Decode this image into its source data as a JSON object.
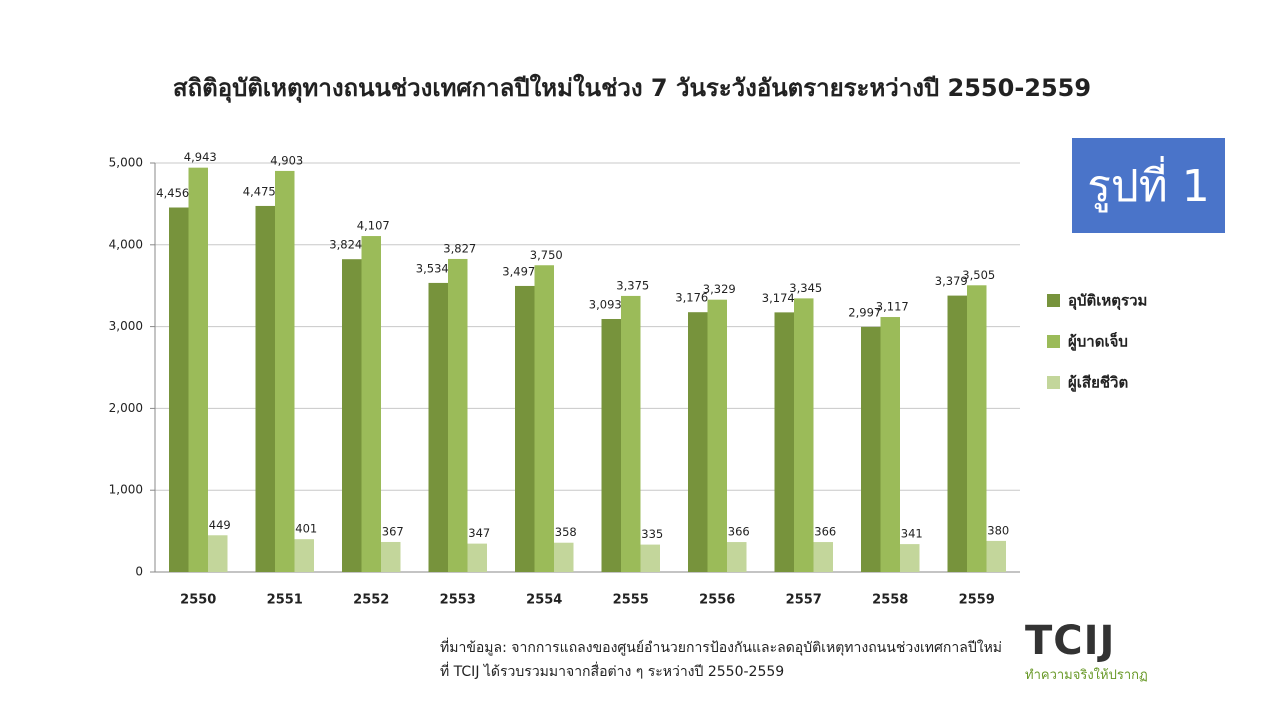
{
  "chart_data": {
    "type": "bar",
    "title": "สถิติอุบัติเหตุทางถนนช่วงเทศกาลปีใหม่ในช่วง 7 วันระวังอันตรายระหว่างปี 2550-2559",
    "categories": [
      "2550",
      "2551",
      "2552",
      "2553",
      "2554",
      "2555",
      "2556",
      "2557",
      "2558",
      "2559"
    ],
    "series": [
      {
        "name": "อุบัติเหตุรวม",
        "color": "#77933c",
        "values": [
          4456,
          4475,
          3824,
          3534,
          3497,
          3093,
          3176,
          3174,
          2997,
          3379
        ],
        "value_labels": [
          "4,456",
          "4,475",
          "3,824",
          "3,534",
          "3,497",
          "3,093",
          "3,176",
          "3,174",
          "2,997",
          "3,379"
        ]
      },
      {
        "name": "ผู้บาดเจ็บ",
        "color": "#9bbb59",
        "values": [
          4943,
          4903,
          4107,
          3827,
          3750,
          3375,
          3329,
          3345,
          3117,
          3505
        ],
        "value_labels": [
          "4,943",
          "4,903",
          "4,107",
          "3,827",
          "3,750",
          "3,375",
          "3,329",
          "3,345",
          "3,117",
          "3,505"
        ]
      },
      {
        "name": "ผู้เสียชีวิต",
        "color": "#c3d69b",
        "values": [
          449,
          401,
          367,
          347,
          358,
          335,
          366,
          366,
          341,
          380
        ]
      }
    ],
    "ylim": [
      0,
      5000
    ],
    "yticks": [
      0,
      {
        "value": 1000,
        "label": "1,000"
      },
      {
        "value": 2000,
        "label": "2,000"
      },
      {
        "value": 3000,
        "label": "3,000"
      },
      {
        "value": 4000,
        "label": "4,000"
      },
      {
        "value": 5000,
        "label": "5,000"
      }
    ],
    "grid": true,
    "legend": "right"
  },
  "badge": "รูปที่ 1",
  "source": [
    "ที่มาข้อมูล: จากการแถลงของศูนย์อำนวยการป้องกันและลดอุบัติเหตุทางถนนช่วงเทศกาลปีใหม่",
    "ที่ TCIJ ได้รวบรวมมาจากสื่อต่าง ๆ ระหว่างปี 2550-2559"
  ],
  "logo": {
    "name": "TCIJ",
    "tagline": "ทำความจริงให้ปรากฏ"
  }
}
